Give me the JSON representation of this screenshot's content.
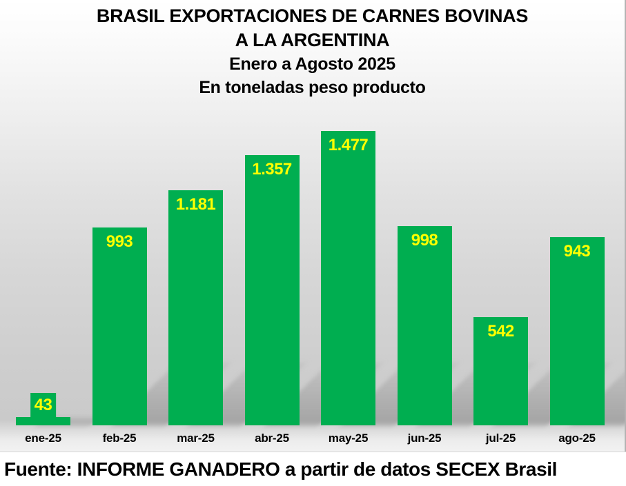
{
  "title": {
    "line1": "BRASIL EXPORTACIONES DE CARNES BOVINAS",
    "line2": "A LA ARGENTINA",
    "line3": "Enero a Agosto 2025",
    "line4": "En toneladas peso producto"
  },
  "footer": {
    "text": "Fuente: INFORME GANADERO a partir de datos SECEX Brasil"
  },
  "colors": {
    "bar": "#00AE50",
    "value_label": "#FFFF00",
    "title_text": "#000000"
  },
  "chart_data": {
    "type": "bar",
    "title": "BRASIL EXPORTACIONES DE CARNES BOVINAS A LA ARGENTINA",
    "subtitle": "Enero a Agosto 2025 - En toneladas peso producto",
    "categories": [
      "ene-25",
      "feb-25",
      "mar-25",
      "abr-25",
      "may-25",
      "jun-25",
      "jul-25",
      "ago-25"
    ],
    "values": [
      43,
      993,
      1181,
      1357,
      1477,
      998,
      542,
      943
    ],
    "value_labels": [
      "43",
      "993",
      "1.181",
      "1.357",
      "1.477",
      "998",
      "542",
      "943"
    ],
    "xlabel": "",
    "ylabel": "toneladas peso producto",
    "ylim": [
      0,
      1477
    ],
    "grid": false,
    "legend": false,
    "bar_color": "#00AE50",
    "label_color": "#FFFF00",
    "source": "Fuente: INFORME GANADERO a partir de datos SECEX Brasil"
  }
}
